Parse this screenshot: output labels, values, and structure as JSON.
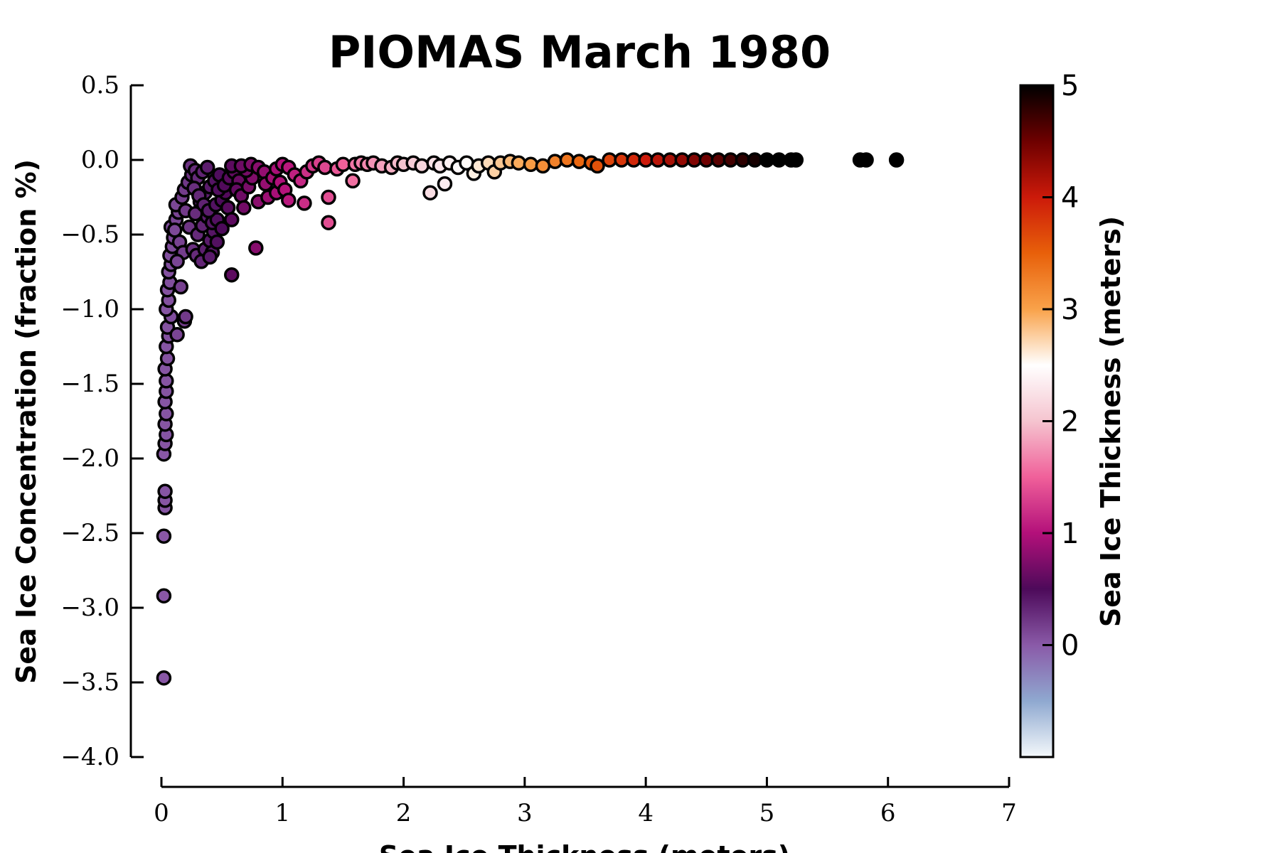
{
  "chart_data": {
    "type": "scatter",
    "title": "PIOMAS March 1980",
    "xlabel": "Sea Ice Thickness (meters)",
    "ylabel": "Sea Ice Concentration (fraction %)",
    "xlim": [
      0,
      7
    ],
    "ylim": [
      -4.0,
      0.5
    ],
    "x_ticks": [
      "0",
      "1",
      "2",
      "3",
      "4",
      "5",
      "6",
      "7"
    ],
    "y_ticks": [
      "0.5",
      "0.0",
      "−0.5",
      "−1.0",
      "−1.5",
      "−2.0",
      "−2.5",
      "−3.0",
      "−3.5",
      "−4.0"
    ],
    "grid": false,
    "colorbar": {
      "label": "Sea Ice Thickness (meters)",
      "ticks": [
        "0",
        "1",
        "2",
        "3",
        "4",
        "5"
      ],
      "range": [
        -1,
        5
      ],
      "colors": [
        "#f4f8fb",
        "#8fa9d0",
        "#8a5aa8",
        "#4d0a5a",
        "#b3107a",
        "#f0609a",
        "#f5c4cf",
        "#ffffff",
        "#f9a24a",
        "#e8600a",
        "#cc1a0a",
        "#6e0000",
        "#000000"
      ]
    },
    "points": [
      {
        "x": 0.02,
        "y": -3.47
      },
      {
        "x": 0.02,
        "y": -2.92
      },
      {
        "x": 0.02,
        "y": -2.52
      },
      {
        "x": 0.03,
        "y": -2.33
      },
      {
        "x": 0.03,
        "y": -2.28
      },
      {
        "x": 0.03,
        "y": -2.22
      },
      {
        "x": 0.02,
        "y": -1.97
      },
      {
        "x": 0.03,
        "y": -1.9
      },
      {
        "x": 0.04,
        "y": -1.84
      },
      {
        "x": 0.03,
        "y": -1.77
      },
      {
        "x": 0.04,
        "y": -1.7
      },
      {
        "x": 0.03,
        "y": -1.62
      },
      {
        "x": 0.04,
        "y": -1.55
      },
      {
        "x": 0.04,
        "y": -1.48
      },
      {
        "x": 0.03,
        "y": -1.4
      },
      {
        "x": 0.05,
        "y": -1.33
      },
      {
        "x": 0.04,
        "y": -1.25
      },
      {
        "x": 0.06,
        "y": -1.18
      },
      {
        "x": 0.05,
        "y": -1.12
      },
      {
        "x": 0.08,
        "y": -1.05
      },
      {
        "x": 0.04,
        "y": -1.0
      },
      {
        "x": 0.06,
        "y": -0.94
      },
      {
        "x": 0.05,
        "y": -0.87
      },
      {
        "x": 0.07,
        "y": -0.82
      },
      {
        "x": 0.06,
        "y": -0.75
      },
      {
        "x": 0.08,
        "y": -0.7
      },
      {
        "x": 0.07,
        "y": -0.64
      },
      {
        "x": 0.09,
        "y": -0.58
      },
      {
        "x": 0.1,
        "y": -0.52
      },
      {
        "x": 0.08,
        "y": -0.45
      },
      {
        "x": 0.12,
        "y": -0.4
      },
      {
        "x": 0.14,
        "y": -0.35
      },
      {
        "x": 0.11,
        "y": -0.47
      },
      {
        "x": 0.15,
        "y": -0.55
      },
      {
        "x": 0.18,
        "y": -0.62
      },
      {
        "x": 0.13,
        "y": -0.68
      },
      {
        "x": 0.16,
        "y": -0.85
      },
      {
        "x": 0.13,
        "y": -1.17
      },
      {
        "x": 0.19,
        "y": -1.08
      },
      {
        "x": 0.2,
        "y": -1.05
      },
      {
        "x": 0.12,
        "y": -0.3
      },
      {
        "x": 0.17,
        "y": -0.25
      },
      {
        "x": 0.19,
        "y": -0.2
      },
      {
        "x": 0.22,
        "y": -0.15
      },
      {
        "x": 0.25,
        "y": -0.1
      },
      {
        "x": 0.24,
        "y": -0.04
      },
      {
        "x": 0.28,
        "y": -0.07
      },
      {
        "x": 0.2,
        "y": -0.34
      },
      {
        "x": 0.23,
        "y": -0.45
      },
      {
        "x": 0.26,
        "y": -0.6
      },
      {
        "x": 0.29,
        "y": -0.64
      },
      {
        "x": 0.33,
        "y": -0.68
      },
      {
        "x": 0.36,
        "y": -0.6
      },
      {
        "x": 0.4,
        "y": -0.54
      },
      {
        "x": 0.43,
        "y": -0.48
      },
      {
        "x": 0.3,
        "y": -0.5
      },
      {
        "x": 0.34,
        "y": -0.44
      },
      {
        "x": 0.38,
        "y": -0.38
      },
      {
        "x": 0.42,
        "y": -0.42
      },
      {
        "x": 0.46,
        "y": -0.4
      },
      {
        "x": 0.5,
        "y": -0.46
      },
      {
        "x": 0.28,
        "y": -0.36
      },
      {
        "x": 0.32,
        "y": -0.28
      },
      {
        "x": 0.36,
        "y": -0.22
      },
      {
        "x": 0.4,
        "y": -0.18
      },
      {
        "x": 0.44,
        "y": -0.14
      },
      {
        "x": 0.48,
        "y": -0.1
      },
      {
        "x": 0.3,
        "y": -0.12
      },
      {
        "x": 0.34,
        "y": -0.08
      },
      {
        "x": 0.38,
        "y": -0.05
      },
      {
        "x": 0.27,
        "y": -0.19
      },
      {
        "x": 0.31,
        "y": -0.24
      },
      {
        "x": 0.35,
        "y": -0.3
      },
      {
        "x": 0.39,
        "y": -0.34
      },
      {
        "x": 0.45,
        "y": -0.3
      },
      {
        "x": 0.5,
        "y": -0.27
      },
      {
        "x": 0.55,
        "y": -0.32
      },
      {
        "x": 0.58,
        "y": -0.4
      },
      {
        "x": 0.53,
        "y": -0.22
      },
      {
        "x": 0.47,
        "y": -0.2
      },
      {
        "x": 0.42,
        "y": -0.62
      },
      {
        "x": 0.46,
        "y": -0.55
      },
      {
        "x": 0.4,
        "y": -0.65
      },
      {
        "x": 0.58,
        "y": -0.77
      },
      {
        "x": 0.78,
        "y": -0.59
      },
      {
        "x": 0.52,
        "y": -0.17
      },
      {
        "x": 0.56,
        "y": -0.12
      },
      {
        "x": 0.6,
        "y": -0.08
      },
      {
        "x": 0.64,
        "y": -0.14
      },
      {
        "x": 0.62,
        "y": -0.2
      },
      {
        "x": 0.66,
        "y": -0.24
      },
      {
        "x": 0.68,
        "y": -0.32
      },
      {
        "x": 0.72,
        "y": -0.18
      },
      {
        "x": 0.75,
        "y": -0.12
      },
      {
        "x": 0.7,
        "y": -0.07
      },
      {
        "x": 0.58,
        "y": -0.04
      },
      {
        "x": 0.66,
        "y": -0.04
      },
      {
        "x": 0.74,
        "y": -0.03
      },
      {
        "x": 0.8,
        "y": -0.05
      },
      {
        "x": 0.85,
        "y": -0.08
      },
      {
        "x": 0.8,
        "y": -0.28
      },
      {
        "x": 0.88,
        "y": -0.25
      },
      {
        "x": 0.95,
        "y": -0.22
      },
      {
        "x": 0.86,
        "y": -0.16
      },
      {
        "x": 0.92,
        "y": -0.12
      },
      {
        "x": 0.98,
        "y": -0.15
      },
      {
        "x": 1.02,
        "y": -0.2
      },
      {
        "x": 1.05,
        "y": -0.27
      },
      {
        "x": 0.95,
        "y": -0.06
      },
      {
        "x": 1.0,
        "y": -0.03
      },
      {
        "x": 1.05,
        "y": -0.05
      },
      {
        "x": 1.1,
        "y": -0.1
      },
      {
        "x": 1.15,
        "y": -0.14
      },
      {
        "x": 1.18,
        "y": -0.29
      },
      {
        "x": 1.2,
        "y": -0.08
      },
      {
        "x": 1.25,
        "y": -0.04
      },
      {
        "x": 1.3,
        "y": -0.02
      },
      {
        "x": 1.35,
        "y": -0.05
      },
      {
        "x": 1.38,
        "y": -0.25
      },
      {
        "x": 1.38,
        "y": -0.42
      },
      {
        "x": 1.45,
        "y": -0.06
      },
      {
        "x": 1.5,
        "y": -0.03
      },
      {
        "x": 1.58,
        "y": -0.14
      },
      {
        "x": 1.6,
        "y": -0.03
      },
      {
        "x": 1.65,
        "y": -0.02
      },
      {
        "x": 1.7,
        "y": -0.03
      },
      {
        "x": 1.75,
        "y": -0.02
      },
      {
        "x": 1.82,
        "y": -0.04
      },
      {
        "x": 1.9,
        "y": -0.05
      },
      {
        "x": 1.95,
        "y": -0.02
      },
      {
        "x": 2.0,
        "y": -0.03
      },
      {
        "x": 2.08,
        "y": -0.02
      },
      {
        "x": 2.15,
        "y": -0.04
      },
      {
        "x": 2.22,
        "y": -0.22
      },
      {
        "x": 2.34,
        "y": -0.16
      },
      {
        "x": 2.25,
        "y": -0.02
      },
      {
        "x": 2.3,
        "y": -0.04
      },
      {
        "x": 2.38,
        "y": -0.02
      },
      {
        "x": 2.45,
        "y": -0.05
      },
      {
        "x": 2.52,
        "y": -0.02
      },
      {
        "x": 2.58,
        "y": -0.09
      },
      {
        "x": 2.62,
        "y": -0.04
      },
      {
        "x": 2.7,
        "y": -0.02
      },
      {
        "x": 2.75,
        "y": -0.08
      },
      {
        "x": 2.8,
        "y": -0.02
      },
      {
        "x": 2.88,
        "y": -0.01
      },
      {
        "x": 2.95,
        "y": -0.02
      },
      {
        "x": 3.05,
        "y": -0.03
      },
      {
        "x": 3.15,
        "y": -0.04
      },
      {
        "x": 3.25,
        "y": -0.01
      },
      {
        "x": 3.35,
        "y": 0.0
      },
      {
        "x": 3.45,
        "y": -0.01
      },
      {
        "x": 3.55,
        "y": -0.02
      },
      {
        "x": 3.6,
        "y": -0.04
      },
      {
        "x": 3.7,
        "y": 0.0
      },
      {
        "x": 3.8,
        "y": 0.0
      },
      {
        "x": 3.9,
        "y": 0.0
      },
      {
        "x": 4.0,
        "y": 0.0
      },
      {
        "x": 4.1,
        "y": 0.0
      },
      {
        "x": 4.2,
        "y": 0.0
      },
      {
        "x": 4.3,
        "y": 0.0
      },
      {
        "x": 4.4,
        "y": 0.0
      },
      {
        "x": 4.5,
        "y": 0.0
      },
      {
        "x": 4.6,
        "y": 0.0
      },
      {
        "x": 4.7,
        "y": 0.0
      },
      {
        "x": 4.8,
        "y": 0.0
      },
      {
        "x": 4.9,
        "y": 0.0
      },
      {
        "x": 5.0,
        "y": 0.0
      },
      {
        "x": 5.1,
        "y": 0.0
      },
      {
        "x": 5.2,
        "y": 0.0
      },
      {
        "x": 5.24,
        "y": 0.0
      },
      {
        "x": 5.77,
        "y": 0.0
      },
      {
        "x": 5.82,
        "y": 0.0
      },
      {
        "x": 6.07,
        "y": 0.0
      }
    ]
  }
}
